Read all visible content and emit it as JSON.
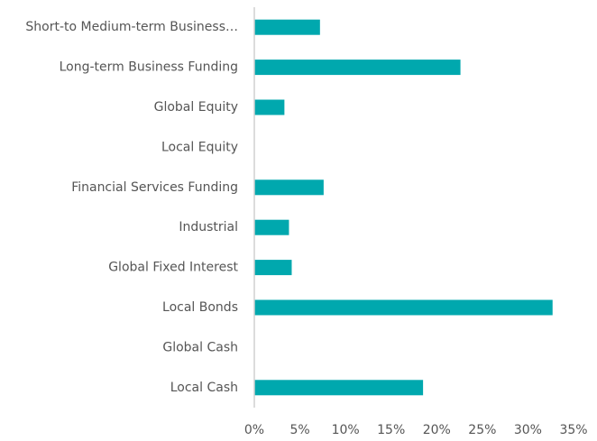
{
  "chart_data": {
    "type": "hbar",
    "categories": [
      "Short-to Medium-term Business…",
      "Long-term Business Funding",
      "Global Equity",
      "Local Equity",
      "Financial Services Funding",
      "Industrial",
      "Global Fixed Interest",
      "Local Bonds",
      "Global Cash",
      "Local Cash"
    ],
    "values": [
      7.2,
      22.6,
      3.3,
      0,
      7.6,
      3.8,
      4.1,
      32.7,
      0,
      18.5
    ],
    "color": "#00a8ae",
    "xlim": [
      0,
      35
    ],
    "xticks": [
      {
        "value": 0,
        "label": "0%"
      },
      {
        "value": 5,
        "label": "5%"
      },
      {
        "value": 10,
        "label": "10%"
      },
      {
        "value": 15,
        "label": "15%"
      },
      {
        "value": 20,
        "label": "20%"
      },
      {
        "value": 25,
        "label": "25%"
      },
      {
        "value": 30,
        "label": "30%"
      },
      {
        "value": 35,
        "label": "35%"
      }
    ],
    "grid": false
  }
}
